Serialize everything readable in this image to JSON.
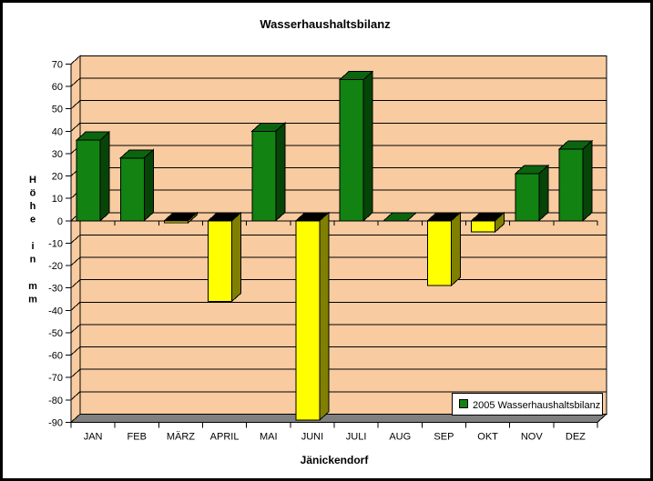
{
  "title": "Wasserhaushaltsbilanz",
  "chart_data": {
    "type": "bar",
    "title": "Wasserhaushaltsbilanz",
    "categories": [
      "JAN",
      "FEB",
      "MÄRZ",
      "APRIL",
      "MAI",
      "JUNI",
      "JULI",
      "AUG",
      "SEP",
      "OKT",
      "NOV",
      "DEZ"
    ],
    "series": [
      {
        "name": "2005 Wasserhaushaltsbilanz",
        "values": [
          36,
          28,
          -1,
          -36,
          40,
          -89,
          63,
          0,
          -29,
          -5,
          21,
          32
        ]
      }
    ],
    "xlabel": "Jänickendorf",
    "ylabel": "Höhe in mm",
    "ylabel_words": [
      "Höhe",
      "in",
      "mm"
    ],
    "ylim": [
      -90,
      70
    ],
    "ytick_step": 10,
    "ytick_labels": [
      "70",
      "60",
      "50",
      "40",
      "30",
      "20",
      "10",
      "0",
      "-10",
      "-20",
      "-30",
      "-40",
      "-50",
      "-60",
      "-70",
      "-80",
      "-90"
    ],
    "grid": true,
    "style": "3d-column",
    "legend_position": "bottom-right"
  },
  "legend": {
    "label": "2005 Wasserhaushaltsbilanz"
  },
  "colors": {
    "background": "#ffffff",
    "frame_border": "#000000",
    "wall": "#f8cba0",
    "floor": "#808080",
    "grid": "#000000",
    "positive_front": "#128212",
    "positive_top": "#0c6410",
    "positive_side": "#064408",
    "negative_front": "#ffff00",
    "negative_top": "#000000",
    "negative_side": "#808000",
    "legend_bg": "#ffffff",
    "legend_border": "#000000",
    "legend_swatch": "#128212"
  }
}
